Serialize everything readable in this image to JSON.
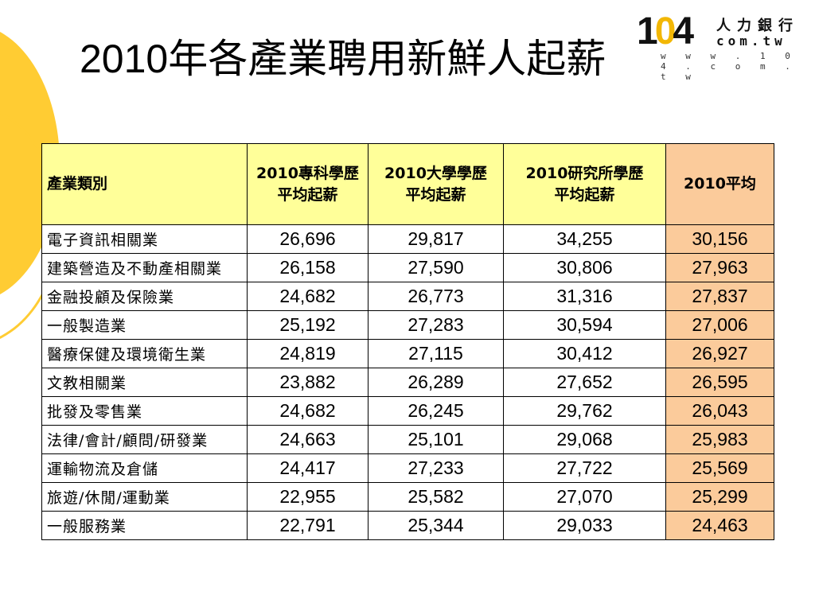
{
  "slide": {
    "title": "2010年各產業聘用新鮮人起薪"
  },
  "logo": {
    "num_1": "1",
    "num_0": "0",
    "num_4": "4",
    "cn": "人力銀行",
    "domain": "com.tw",
    "url": "w w w . 1 0 4 . c o m . t w"
  },
  "colors": {
    "header_bg": "#ffff99",
    "avg_column_bg": "#fbcb9b",
    "decoration": "#ffcc33"
  },
  "chart_data": {
    "type": "table",
    "columns": [
      "產業類別",
      "2010專科學歷\n平均起薪",
      "2010大學學歷\n平均起薪",
      "2010研究所學歷\n平均起薪",
      "2010平均"
    ],
    "rows": [
      [
        "電子資訊相關業",
        "26,696",
        "29,817",
        "34,255",
        "30,156"
      ],
      [
        "建築營造及不動產相關業",
        "26,158",
        "27,590",
        "30,806",
        "27,963"
      ],
      [
        "金融投顧及保險業",
        "24,682",
        "26,773",
        "31,316",
        "27,837"
      ],
      [
        "一般製造業",
        "25,192",
        "27,283",
        "30,594",
        "27,006"
      ],
      [
        "醫療保健及環境衛生業",
        "24,819",
        "27,115",
        "30,412",
        "26,927"
      ],
      [
        "文教相關業",
        "23,882",
        "26,289",
        "27,652",
        "26,595"
      ],
      [
        "批發及零售業",
        "24,682",
        "26,245",
        "29,762",
        "26,043"
      ],
      [
        "法律/會計/顧問/研發業",
        "24,663",
        "25,101",
        "29,068",
        "25,983"
      ],
      [
        "運輸物流及倉儲",
        "24,417",
        "27,233",
        "27,722",
        "25,569"
      ],
      [
        "旅遊/休閒/運動業",
        "22,955",
        "25,582",
        "27,070",
        "25,299"
      ],
      [
        "一般服務業",
        "22,791",
        "25,344",
        "29,033",
        "24,463"
      ]
    ]
  }
}
